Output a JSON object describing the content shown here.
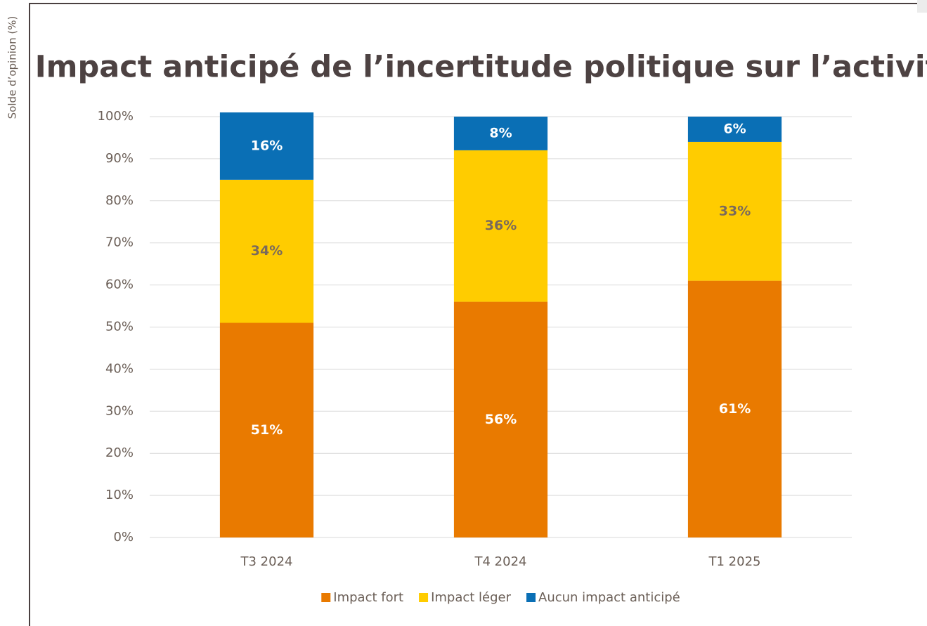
{
  "chart_data": {
    "type": "stacked_bar",
    "title": "Impact anticipé de l’incertitude politique sur l’activité",
    "y_label": "Solde d’opinion (%)",
    "categories": [
      "T3 2024",
      "T4 2024",
      "T1 2025"
    ],
    "series": [
      {
        "name": "Impact fort",
        "color": "#e97a00",
        "values": [
          51,
          56,
          61
        ],
        "value_labels": [
          "51%",
          "56%",
          "61%"
        ],
        "label_color": "#ffffff"
      },
      {
        "name": "Impact léger",
        "color": "#ffcc00",
        "values": [
          34,
          36,
          33
        ],
        "value_labels": [
          "34%",
          "36%",
          "33%"
        ],
        "label_color": "#7a6a5c"
      },
      {
        "name": "Aucun impact anticipé",
        "color": "#0a6fb5",
        "values": [
          16,
          8,
          6
        ],
        "value_labels": [
          "16%",
          "8%",
          "6%"
        ],
        "label_color": "#ffffff"
      }
    ],
    "ylim": [
      0,
      100
    ],
    "yticks": [
      {
        "value": 0,
        "label": "0%"
      },
      {
        "value": 10,
        "label": "10%"
      },
      {
        "value": 20,
        "label": "20%"
      },
      {
        "value": 30,
        "label": "30%"
      },
      {
        "value": 40,
        "label": "40%"
      },
      {
        "value": 50,
        "label": "50%"
      },
      {
        "value": 60,
        "label": "60%"
      },
      {
        "value": 70,
        "label": "70%"
      },
      {
        "value": 80,
        "label": "80%"
      },
      {
        "value": 90,
        "label": "90%"
      },
      {
        "value": 100,
        "label": "100%"
      }
    ],
    "grid": true,
    "legend": "bottom"
  }
}
